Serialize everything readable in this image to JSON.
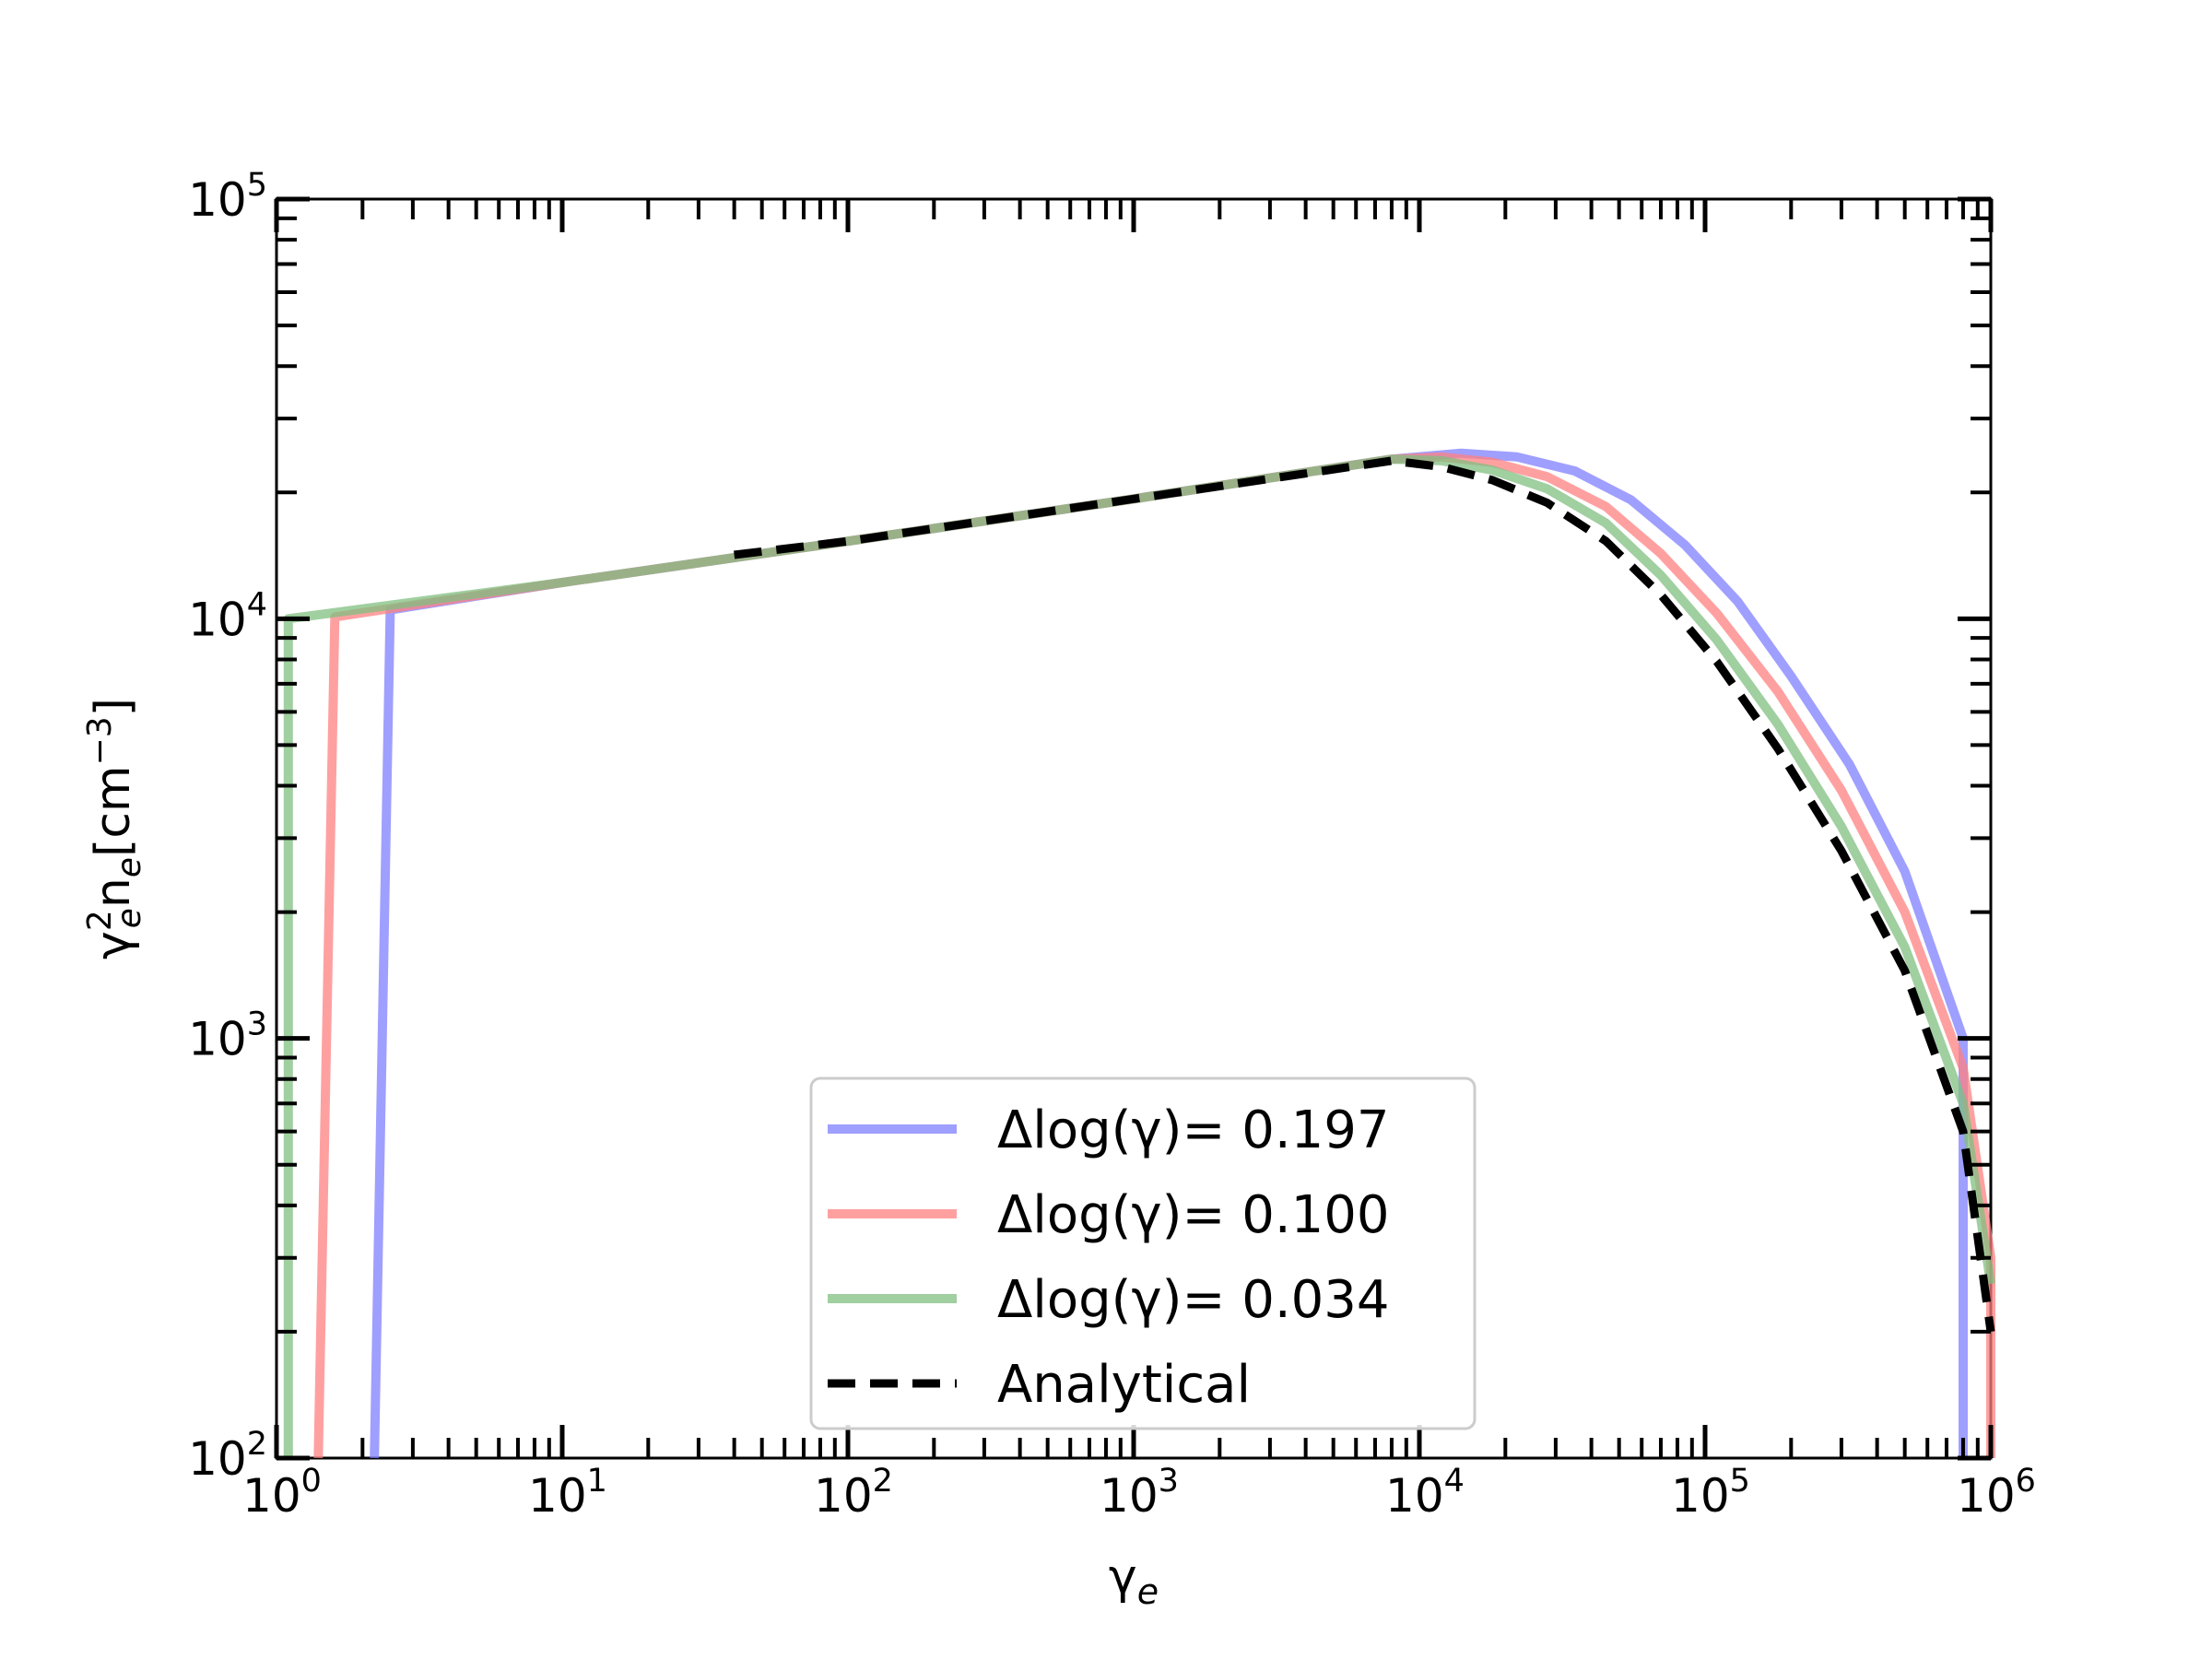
{
  "chart_data": {
    "type": "line",
    "title": "",
    "xlabel": {
      "base": "γ",
      "sub": "e"
    },
    "ylabel": {
      "base": "γ",
      "sup": "2",
      "sub": "e",
      "mid": "n",
      "sub2": "e",
      "units_pre": "[cm",
      "units_sup": "−3",
      "units_post": "]"
    },
    "xscale": "log",
    "yscale": "log",
    "xlim": [
      1,
      1000000
    ],
    "ylim": [
      100,
      100000
    ],
    "x_ticks": [
      {
        "base": "10",
        "exp": "0"
      },
      {
        "base": "10",
        "exp": "1"
      },
      {
        "base": "10",
        "exp": "2"
      },
      {
        "base": "10",
        "exp": "3"
      },
      {
        "base": "10",
        "exp": "4"
      },
      {
        "base": "10",
        "exp": "5"
      },
      {
        "base": "10",
        "exp": "6"
      }
    ],
    "y_ticks": [
      {
        "base": "10",
        "exp": "2"
      },
      {
        "base": "10",
        "exp": "3"
      },
      {
        "base": "10",
        "exp": "4"
      },
      {
        "base": "10",
        "exp": "5"
      }
    ],
    "grid": false,
    "legend_position": "lower-center",
    "series": [
      {
        "name": "Δlog(γ)= 0.197",
        "color": "#7f7fff",
        "style": "solid",
        "x": [
          2.2,
          2.5,
          10,
          100,
          1000,
          8000,
          14000,
          22000,
          35000,
          55000,
          85000,
          130000,
          200000,
          320000,
          500000,
          800000,
          800000
        ],
        "y": [
          100,
          10500,
          12200,
          15300,
          19300,
          24000,
          24800,
          24300,
          22500,
          19200,
          15000,
          11000,
          7300,
          4500,
          2500,
          1000,
          100
        ]
      },
      {
        "name": "Δlog(γ)= 0.100",
        "color": "#ff8080",
        "style": "solid",
        "x": [
          1.4,
          1.6,
          10,
          100,
          1000,
          8000,
          12000,
          18000,
          28000,
          45000,
          70000,
          110000,
          180000,
          300000,
          500000,
          800000,
          1000000,
          1000000
        ],
        "y": [
          100,
          10100,
          12200,
          15300,
          19300,
          24000,
          24300,
          23600,
          21800,
          18500,
          14300,
          10300,
          6700,
          3900,
          2000,
          850,
          300,
          100
        ]
      },
      {
        "name": "Δlog(γ)= 0.034",
        "color": "#80bf80",
        "style": "solid",
        "x": [
          1.1,
          1.1,
          10,
          100,
          1000,
          8000,
          12000,
          18000,
          28000,
          45000,
          70000,
          110000,
          180000,
          300000,
          500000,
          800000,
          1000000
        ],
        "y": [
          100,
          10000,
          12200,
          15300,
          19300,
          24000,
          23800,
          22600,
          20400,
          16900,
          12700,
          8900,
          5600,
          3200,
          1650,
          700,
          260
        ]
      },
      {
        "name": "Analytical",
        "color": "#000000",
        "style": "dashed",
        "x": [
          40,
          100,
          1000,
          8000,
          12000,
          18000,
          28000,
          45000,
          70000,
          110000,
          180000,
          300000,
          500000,
          800000,
          1000000
        ],
        "y": [
          14200,
          15300,
          19300,
          23800,
          23000,
          21400,
          18900,
          15300,
          11400,
          7900,
          4900,
          2800,
          1450,
          600,
          200
        ]
      }
    ]
  }
}
